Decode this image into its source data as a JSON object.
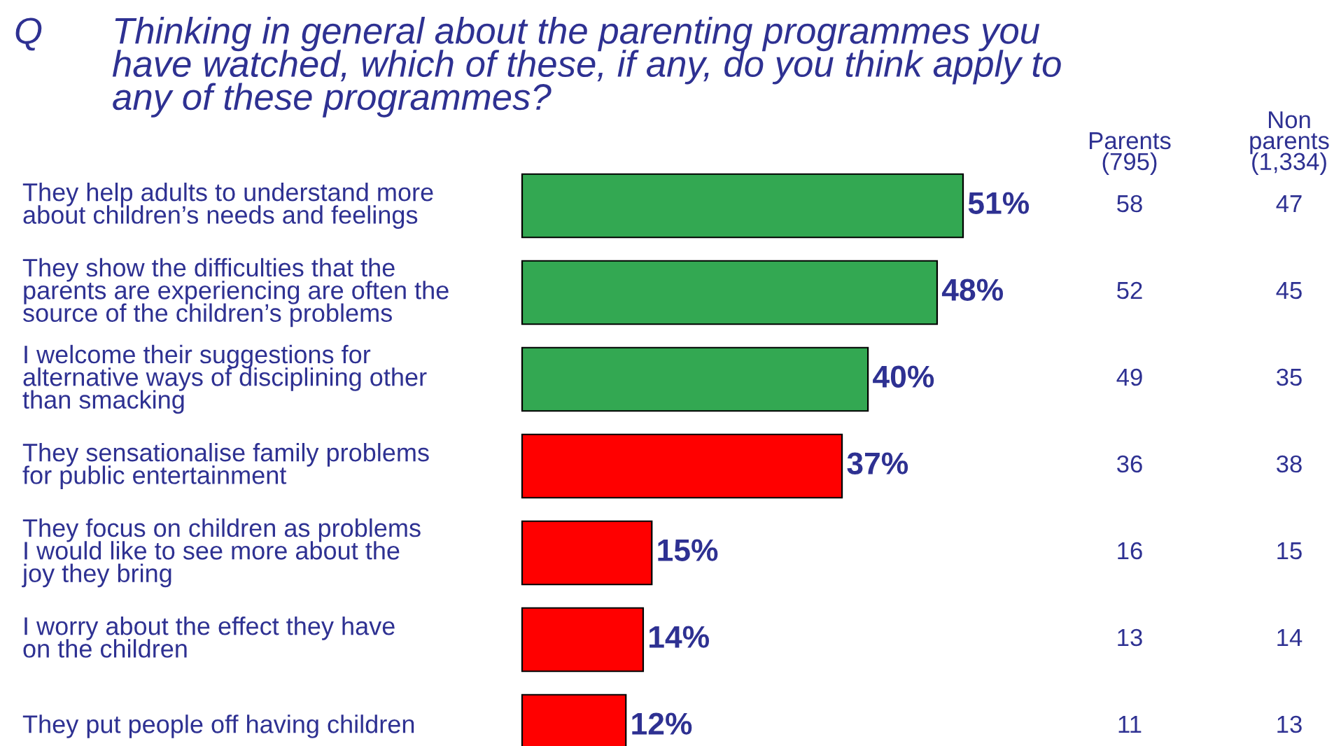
{
  "chart_data": {
    "type": "bar",
    "orientation": "horizontal",
    "title": "Thinking in general about the parenting programmes you\nhave watched, which of these, if any, do you think apply to\nany of these programmes?",
    "categories": [
      "They help adults to understand more\nabout children’s needs and feelings",
      "They show the difficulties that the\nparents are experiencing are often the\nsource of the children’s problems",
      "I welcome their suggestions for\nalternative ways of disciplining other\nthan smacking",
      "They sensationalise family problems\nfor public entertainment",
      "They focus on children as problems\nI would like to see more about the\njoy they bring",
      "I worry about the effect they have\non the children",
      "They put people off having children"
    ],
    "values": [
      51,
      48,
      40,
      37,
      15,
      14,
      12
    ],
    "colors": [
      "#33a852",
      "#33a852",
      "#33a852",
      "#ff0000",
      "#ff0000",
      "#ff0000",
      "#ff0000"
    ],
    "value_labels": [
      "51%",
      "48%",
      "40%",
      "37%",
      "15%",
      "14%",
      "12%"
    ],
    "annotations": [
      "Q",
      "Parents\n(795)",
      "Non\nparents\n(1,334)",
      "58",
      "52",
      "49",
      "36",
      "16",
      "13",
      "11",
      "47",
      "45",
      "35",
      "38",
      "15",
      "14",
      "13"
    ]
  }
}
